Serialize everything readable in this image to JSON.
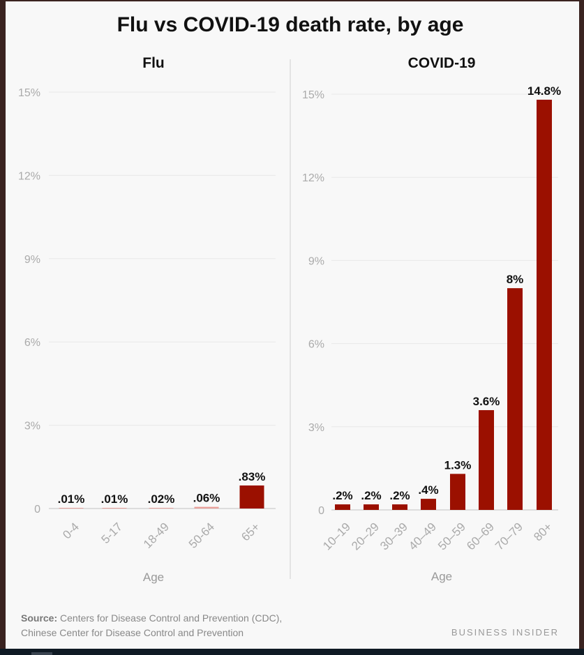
{
  "title": "Flu vs COVID-19 death rate, by age",
  "source_label": "Source:",
  "source_text_1": " Centers for Disease Control and Prevention (CDC),",
  "source_text_2": "Chinese Center for Disease Control and Prevention",
  "brand": "BUSINESS INSIDER",
  "colors": {
    "bar": "#9b1000",
    "small_bar": "#e8a09a"
  },
  "chart_data": [
    {
      "type": "bar",
      "title": "Flu",
      "xlabel": "Age",
      "ylabel": "",
      "ylim": [
        0,
        15
      ],
      "yticks": [
        0,
        3,
        6,
        9,
        12,
        15
      ],
      "ytick_labels": [
        "0",
        "3%",
        "6%",
        "9%",
        "12%",
        "15%"
      ],
      "grid": true,
      "categories": [
        "0-4",
        "5-17",
        "18-49",
        "50-64",
        "65+"
      ],
      "values": [
        0.01,
        0.01,
        0.02,
        0.06,
        0.83
      ],
      "data_labels": [
        ".01%",
        ".01%",
        ".02%",
        ".06%",
        ".83%"
      ]
    },
    {
      "type": "bar",
      "title": "COVID-19",
      "xlabel": "Age",
      "ylabel": "",
      "ylim": [
        0,
        15
      ],
      "yticks": [
        0,
        3,
        6,
        9,
        12,
        15
      ],
      "ytick_labels": [
        "0",
        "3%",
        "6%",
        "9%",
        "12%",
        "15%"
      ],
      "grid": true,
      "categories": [
        "10–19",
        "20–29",
        "30–39",
        "40–49",
        "50–59",
        "60–69",
        "70–79",
        "80+"
      ],
      "values": [
        0.2,
        0.2,
        0.2,
        0.4,
        1.3,
        3.6,
        8,
        14.8
      ],
      "data_labels": [
        ".2%",
        ".2%",
        ".2%",
        ".4%",
        "1.3%",
        "3.6%",
        "8%",
        "14.8%"
      ]
    }
  ]
}
